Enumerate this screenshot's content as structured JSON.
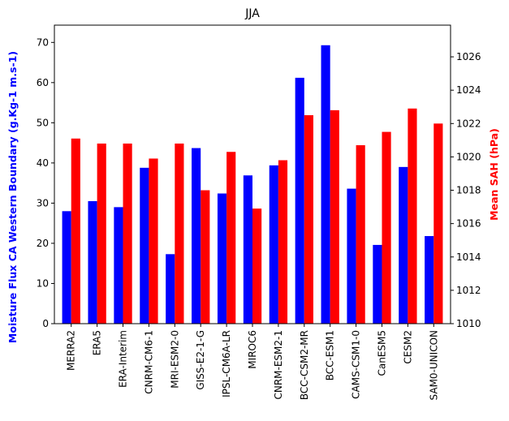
{
  "chart_data": {
    "type": "bar",
    "title": "JJA",
    "categories": [
      "MERRA2",
      "ERA5",
      "ERA-Interim",
      "CNRM-CM6-1",
      "MRI-ESM2-0",
      "GISS-E2-1-G",
      "IPSL-CM6A-LR",
      "MIROC6",
      "CNRM-ESM2-1",
      "BCC-CSM2-MR",
      "BCC-ESM1",
      "CAMS-CSM1-0",
      "CanESM5",
      "CESM2",
      "SAM0-UNICON"
    ],
    "series": [
      {
        "name": "",
        "axis": "left",
        "color": "#0000ff",
        "values": [
          28.0,
          30.5,
          29.0,
          38.8,
          17.3,
          43.7,
          32.4,
          36.9,
          39.4,
          61.2,
          69.3,
          33.6,
          19.6,
          39.0,
          21.8
        ]
      },
      {
        "name": "",
        "axis": "right",
        "color": "#ff0000",
        "values": [
          1021.1,
          1020.8,
          1020.8,
          1019.9,
          1020.8,
          1018.0,
          1020.3,
          1016.9,
          1019.8,
          1022.5,
          1022.8,
          1020.7,
          1021.5,
          1022.9,
          1022.0
        ]
      }
    ],
    "y_left": {
      "label": "Moisture Flux CA Western Boundary (g.Kg-1 m.s-1)",
      "label_color": "#0000ff",
      "ylim": [
        0,
        74.3
      ],
      "ticks": [
        0,
        10,
        20,
        30,
        40,
        50,
        60,
        70
      ]
    },
    "y_right": {
      "label": "Mean SAH (hPa)",
      "label_color": "#ff0000",
      "ylim": [
        1010,
        1027.9
      ],
      "ticks": [
        1010,
        1012,
        1014,
        1016,
        1018,
        1020,
        1022,
        1024,
        1026
      ]
    },
    "grid": false,
    "legend": "none"
  }
}
